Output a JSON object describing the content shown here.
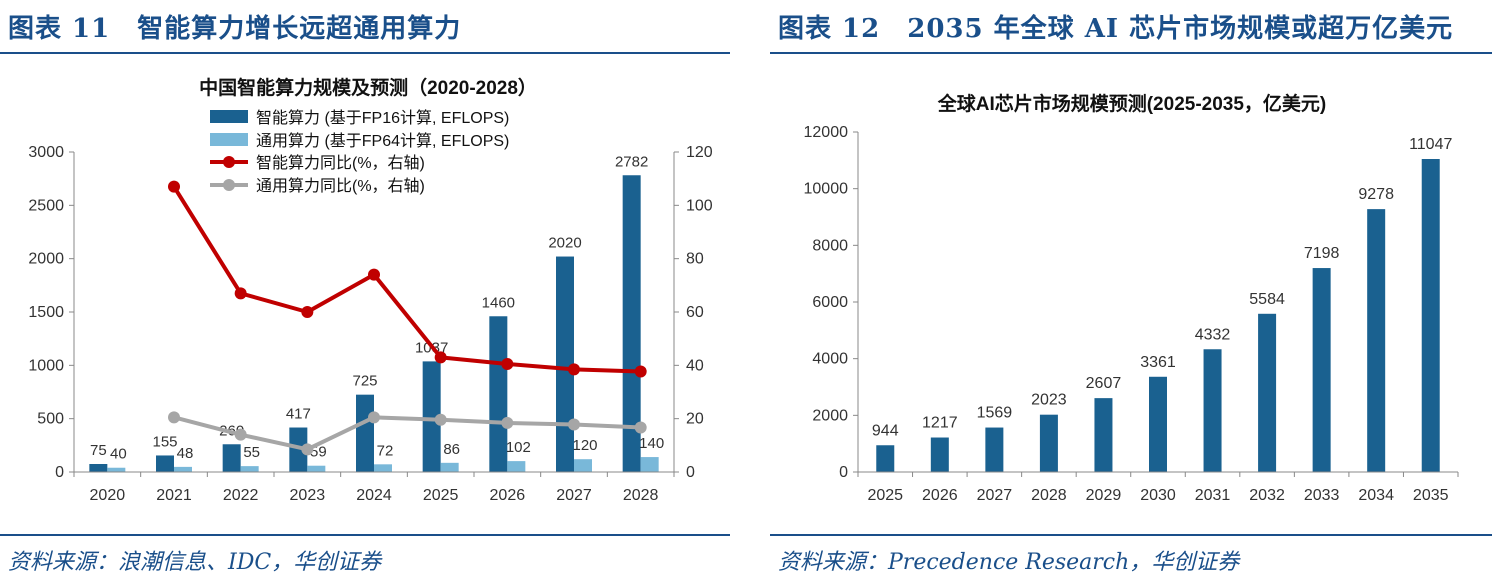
{
  "left": {
    "figure_title": "图表 11　智能算力增长远超通用算力",
    "source": "资料来源：浪潮信息、IDC，华创证券",
    "colors": {
      "bar_primary": "#1a6190",
      "bar_secondary": "#79b8d9",
      "line_primary": "#c00000",
      "line_secondary": "#a6a6a6"
    },
    "chart_data": {
      "type": "bar",
      "title": "中国智能算力规模及预测（2020-2028）",
      "categories": [
        "2020",
        "2021",
        "2022",
        "2023",
        "2024",
        "2025",
        "2026",
        "2027",
        "2028"
      ],
      "ylim": [
        0,
        3000
      ],
      "y_ticks": [
        "0",
        "500",
        "1000",
        "1500",
        "2000",
        "2500",
        "3000"
      ],
      "y2lim": [
        0,
        120
      ],
      "y2_ticks": [
        "0",
        "20",
        "40",
        "60",
        "80",
        "100",
        "120"
      ],
      "legend_position": "top-left",
      "series": [
        {
          "name": "智能算力 (基于FP16计算, EFLOPS)",
          "type": "bar",
          "axis": "left",
          "values": [
            75,
            155,
            260,
            417,
            725,
            1037,
            1460,
            2020,
            2782
          ],
          "labels": [
            "75",
            "155",
            "260",
            "417",
            "725",
            "1037",
            "1460",
            "2020",
            "2782"
          ]
        },
        {
          "name": "通用算力 (基于FP64计算, EFLOPS)",
          "type": "bar",
          "axis": "left",
          "values": [
            40,
            48,
            55,
            59,
            72,
            86,
            102,
            120,
            140
          ],
          "labels": [
            "40",
            "48",
            "55",
            "59",
            "72",
            "86",
            "102",
            "120",
            "140"
          ]
        },
        {
          "name": "智能算力同比(%，右轴)",
          "type": "line",
          "axis": "right",
          "values": [
            null,
            107,
            67,
            60,
            74,
            43,
            40.5,
            38.5,
            37.7
          ]
        },
        {
          "name": "通用算力同比(%，右轴)",
          "type": "line",
          "axis": "right",
          "values": [
            null,
            20.5,
            14,
            8.5,
            20.5,
            19.6,
            18.4,
            17.8,
            16.7
          ]
        }
      ]
    }
  },
  "right": {
    "figure_title": "图表 12　2035 年全球 AI 芯片市场规模或超万亿美元",
    "source": "资料来源：Precedence Research，华创证券",
    "colors": {
      "bar": "#1a6190"
    },
    "chart_data": {
      "type": "bar",
      "title": "全球AI芯片市场规模预测(2025-2035，亿美元)",
      "categories": [
        "2025",
        "2026",
        "2027",
        "2028",
        "2029",
        "2030",
        "2031",
        "2032",
        "2033",
        "2034",
        "2035"
      ],
      "values": [
        944,
        1217,
        1569,
        2023,
        2607,
        3361,
        4332,
        5584,
        7198,
        9278,
        11047
      ],
      "labels": [
        "944",
        "1217",
        "1569",
        "2023",
        "2607",
        "3361",
        "4332",
        "5584",
        "7198",
        "9278",
        "11047"
      ],
      "ylim": [
        0,
        12000
      ],
      "y_ticks": [
        "0",
        "2000",
        "4000",
        "6000",
        "8000",
        "10000",
        "12000"
      ]
    }
  }
}
